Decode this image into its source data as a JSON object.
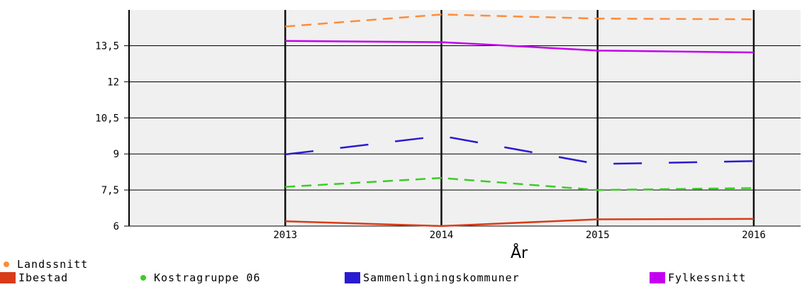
{
  "chart_data": {
    "type": "line",
    "xlabel": "År",
    "x": [
      2013,
      2014,
      2015,
      2016
    ],
    "y_ticks": [
      "6",
      "7,5",
      "9",
      "10,5",
      "12",
      "13,5"
    ],
    "ylim": [
      6,
      14.99
    ],
    "xlim": [
      2012,
      2016.3
    ],
    "grid": true,
    "legend_position": "bottom-left",
    "series": [
      {
        "name": "Landssnitt",
        "values": [
          14.3,
          14.8,
          14.63,
          14.6
        ],
        "color": "#ff8c3c",
        "style": "dashed",
        "legend_marker": "dot"
      },
      {
        "name": "Fylkessnitt",
        "values": [
          13.7,
          13.65,
          13.3,
          13.22
        ],
        "color": "#c400f0",
        "style": "solid",
        "legend_marker": "square"
      },
      {
        "name": "Sammenligningskommuner",
        "values": [
          8.98,
          9.75,
          8.58,
          8.7
        ],
        "color": "#2a1bd0",
        "style": "longdash",
        "legend_marker": "square"
      },
      {
        "name": "Kostragruppe 06",
        "values": [
          7.63,
          8.0,
          7.5,
          7.58
        ],
        "color": "#3ccc28",
        "style": "dashed",
        "legend_marker": "dot"
      },
      {
        "name": "Ibestad",
        "values": [
          6.2,
          6.0,
          6.28,
          6.3
        ],
        "color": "#d83c18",
        "style": "solid",
        "legend_marker": "square"
      }
    ]
  }
}
